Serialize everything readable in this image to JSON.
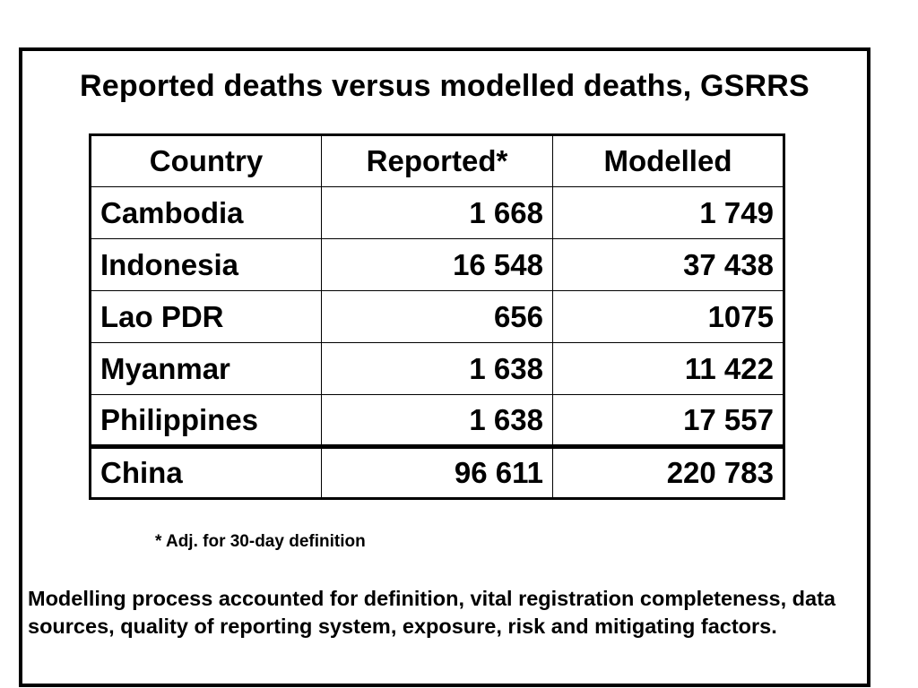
{
  "title": "Reported deaths versus modelled deaths, GSRRS",
  "table": {
    "headers": [
      "Country",
      "Reported*",
      "Modelled"
    ],
    "rows": [
      {
        "country": "Cambodia",
        "reported": "1 668",
        "modelled": "1 749"
      },
      {
        "country": "Indonesia",
        "reported": "16 548",
        "modelled": "37 438"
      },
      {
        "country": "Lao PDR",
        "reported": "656",
        "modelled": "1075"
      },
      {
        "country": "Myanmar",
        "reported": "1 638",
        "modelled": "11 422"
      },
      {
        "country": "Philippines",
        "reported": "1 638",
        "modelled": "17 557"
      }
    ],
    "total_row": {
      "country": "China",
      "reported": "96 611",
      "modelled": "220 783"
    }
  },
  "footnote": "* Adj. for 30-day definition",
  "note": "Modelling process accounted for definition, vital registration completeness, data sources, quality of reporting system, exposure, risk and mitigating factors."
}
